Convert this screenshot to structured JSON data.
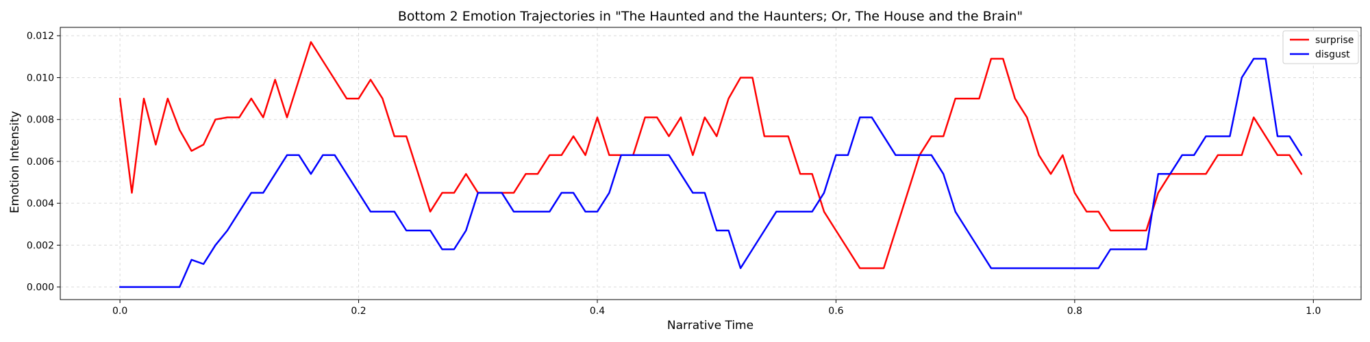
{
  "chart_data": {
    "type": "line",
    "title": "Bottom 2 Emotion Trajectories in \"The Haunted and the Haunters; Or, The House and the Brain\"",
    "xlabel": "Narrative Time",
    "ylabel": "Emotion Intensity",
    "xlim": [
      -0.05,
      1.04
    ],
    "ylim": [
      -0.0006,
      0.0124
    ],
    "x_ticks": [
      0.0,
      0.2,
      0.4,
      0.6,
      0.8,
      1.0
    ],
    "x_tick_labels": [
      "0.0",
      "0.2",
      "0.4",
      "0.6",
      "0.8",
      "1.0"
    ],
    "y_ticks": [
      0.0,
      0.002,
      0.004,
      0.006,
      0.008,
      0.01,
      0.012
    ],
    "y_tick_labels": [
      "0.000",
      "0.002",
      "0.004",
      "0.006",
      "0.008",
      "0.010",
      "0.012"
    ],
    "grid": true,
    "legend_position": "top-right",
    "x": [
      0.0,
      0.01,
      0.02,
      0.03,
      0.04,
      0.05,
      0.06,
      0.07,
      0.08,
      0.09,
      0.1,
      0.11,
      0.12,
      0.13,
      0.14,
      0.15,
      0.16,
      0.17,
      0.18,
      0.19,
      0.2,
      0.21,
      0.22,
      0.23,
      0.24,
      0.25,
      0.26,
      0.27,
      0.28,
      0.29,
      0.3,
      0.31,
      0.32,
      0.33,
      0.34,
      0.35,
      0.36,
      0.37,
      0.38,
      0.39,
      0.4,
      0.41,
      0.42,
      0.43,
      0.44,
      0.45,
      0.46,
      0.47,
      0.48,
      0.49,
      0.5,
      0.51,
      0.52,
      0.53,
      0.54,
      0.55,
      0.56,
      0.57,
      0.58,
      0.59,
      0.6,
      0.61,
      0.62,
      0.63,
      0.64,
      0.65,
      0.66,
      0.67,
      0.68,
      0.69,
      0.7,
      0.71,
      0.72,
      0.73,
      0.74,
      0.75,
      0.76,
      0.77,
      0.78,
      0.79,
      0.8,
      0.81,
      0.82,
      0.83,
      0.84,
      0.85,
      0.86,
      0.87,
      0.88,
      0.89,
      0.9,
      0.91,
      0.92,
      0.93,
      0.94,
      0.95,
      0.96,
      0.97,
      0.98,
      0.99
    ],
    "series": [
      {
        "name": "surprise",
        "color": "#ff0000",
        "values": [
          0.009,
          0.0045,
          0.009,
          0.0068,
          0.009,
          0.0075,
          0.0065,
          0.0068,
          0.008,
          0.0081,
          0.0081,
          0.009,
          0.0081,
          0.0099,
          0.0081,
          0.0099,
          0.0117,
          0.0108,
          0.0099,
          0.009,
          0.009,
          0.0099,
          0.009,
          0.0072,
          0.0072,
          0.0054,
          0.0036,
          0.0045,
          0.0045,
          0.0054,
          0.0045,
          0.0045,
          0.0045,
          0.0045,
          0.0054,
          0.0054,
          0.0063,
          0.0063,
          0.0072,
          0.0063,
          0.0081,
          0.0063,
          0.0063,
          0.0063,
          0.0081,
          0.0081,
          0.0072,
          0.0081,
          0.0063,
          0.0081,
          0.0072,
          0.009,
          0.01,
          0.01,
          0.0072,
          0.0072,
          0.0072,
          0.0054,
          0.0054,
          0.0036,
          0.0027,
          0.0018,
          0.0009,
          0.0009,
          0.0009,
          0.0027,
          0.0045,
          0.0063,
          0.0072,
          0.0072,
          0.009,
          0.009,
          0.009,
          0.0109,
          0.0109,
          0.009,
          0.0081,
          0.0063,
          0.0054,
          0.0063,
          0.0045,
          0.0036,
          0.0036,
          0.0027,
          0.0027,
          0.0027,
          0.0027,
          0.0045,
          0.0054,
          0.0054,
          0.0054,
          0.0054,
          0.0063,
          0.0063,
          0.0063,
          0.0081,
          0.0072,
          0.0063,
          0.0063,
          0.0054
        ]
      },
      {
        "name": "disgust",
        "color": "#0000ff",
        "values": [
          0.0,
          0.0,
          0.0,
          0.0,
          0.0,
          0.0,
          0.0013,
          0.0011,
          0.002,
          0.0027,
          0.0036,
          0.0045,
          0.0045,
          0.0054,
          0.0063,
          0.0063,
          0.0054,
          0.0063,
          0.0063,
          0.0054,
          0.0045,
          0.0036,
          0.0036,
          0.0036,
          0.0027,
          0.0027,
          0.0027,
          0.0018,
          0.0018,
          0.0027,
          0.0045,
          0.0045,
          0.0045,
          0.0036,
          0.0036,
          0.0036,
          0.0036,
          0.0045,
          0.0045,
          0.0036,
          0.0036,
          0.0045,
          0.0063,
          0.0063,
          0.0063,
          0.0063,
          0.0063,
          0.0054,
          0.0045,
          0.0045,
          0.0027,
          0.0027,
          0.0009,
          0.0018,
          0.0027,
          0.0036,
          0.0036,
          0.0036,
          0.0036,
          0.0045,
          0.0063,
          0.0063,
          0.0081,
          0.0081,
          0.0072,
          0.0063,
          0.0063,
          0.0063,
          0.0063,
          0.0054,
          0.0036,
          0.0027,
          0.0018,
          0.0009,
          0.0009,
          0.0009,
          0.0009,
          0.0009,
          0.0009,
          0.0009,
          0.0009,
          0.0009,
          0.0009,
          0.0018,
          0.0018,
          0.0018,
          0.0018,
          0.0054,
          0.0054,
          0.0063,
          0.0063,
          0.0072,
          0.0072,
          0.0072,
          0.01,
          0.0109,
          0.0109,
          0.0072,
          0.0072,
          0.0063
        ]
      }
    ]
  }
}
